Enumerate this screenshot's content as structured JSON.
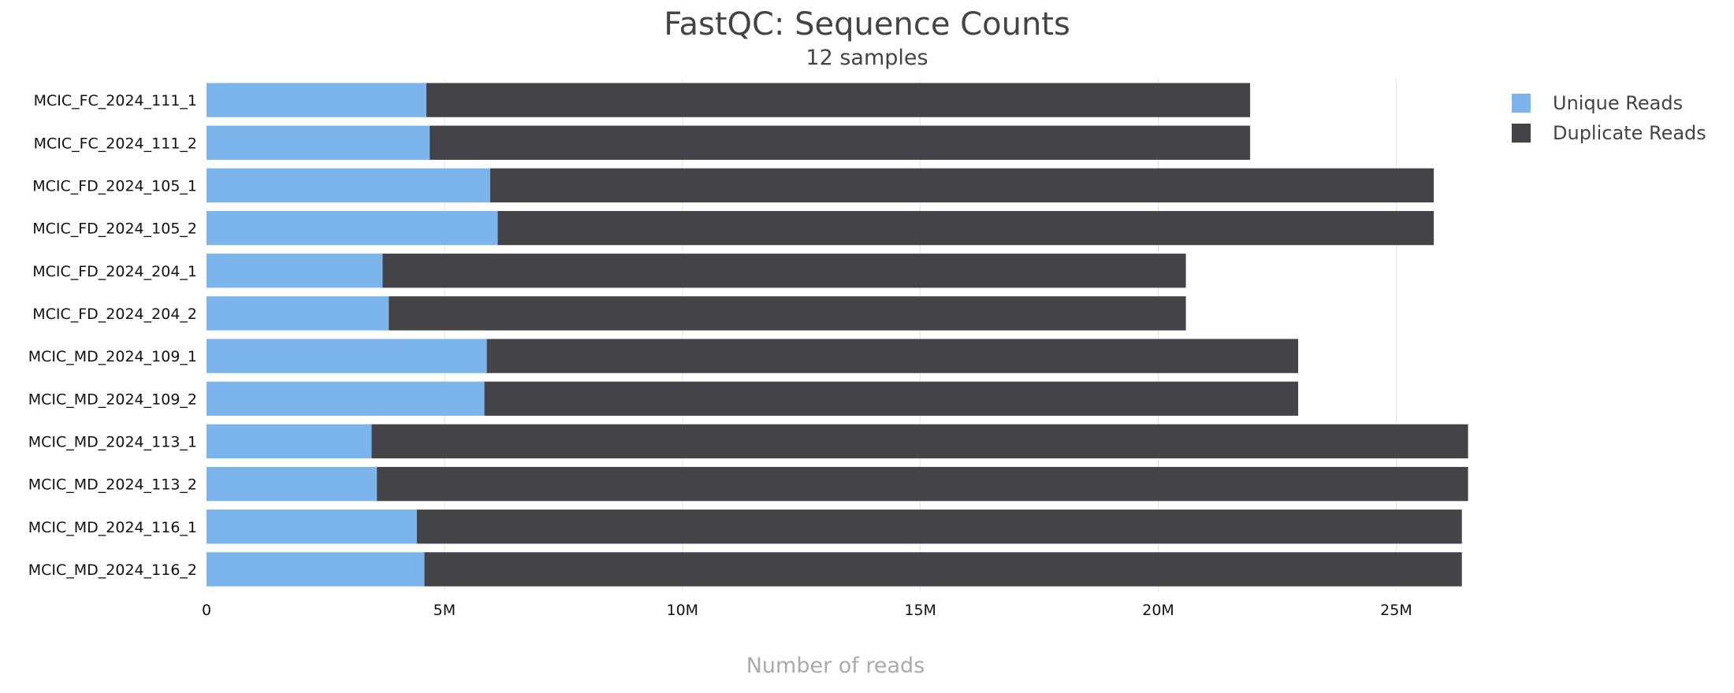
{
  "chart_data": {
    "type": "bar",
    "orientation": "horizontal",
    "stacked": true,
    "title": "FastQC: Sequence Counts",
    "subtitle": "12 samples",
    "xlabel": "Number of reads",
    "ylabel": "",
    "xlim": [
      0,
      26500000
    ],
    "x_ticks": [
      {
        "value": 0,
        "label": "0"
      },
      {
        "value": 5000000,
        "label": "5M"
      },
      {
        "value": 10000000,
        "label": "10M"
      },
      {
        "value": 15000000,
        "label": "15M"
      },
      {
        "value": 20000000,
        "label": "20M"
      },
      {
        "value": 25000000,
        "label": "25M"
      }
    ],
    "grid": "vertical",
    "legend_position": "top-right",
    "categories": [
      "MCIC_FC_2024_111_1",
      "MCIC_FC_2024_111_2",
      "MCIC_FD_2024_105_1",
      "MCIC_FD_2024_105_2",
      "MCIC_FD_2024_204_1",
      "MCIC_FD_2024_204_2",
      "MCIC_MD_2024_109_1",
      "MCIC_MD_2024_109_2",
      "MCIC_MD_2024_113_1",
      "MCIC_MD_2024_113_2",
      "MCIC_MD_2024_116_1",
      "MCIC_MD_2024_116_2"
    ],
    "series": [
      {
        "name": "Unique Reads",
        "color": "#7cb5ec",
        "values": [
          4620000,
          4690000,
          5960000,
          6120000,
          3700000,
          3830000,
          5890000,
          5840000,
          3470000,
          3580000,
          4420000,
          4580000
        ]
      },
      {
        "name": "Duplicate Reads",
        "color": "#434348",
        "values": [
          17310000,
          17240000,
          19830000,
          19670000,
          16880000,
          16750000,
          17050000,
          17100000,
          23040000,
          22930000,
          21960000,
          21800000
        ]
      }
    ]
  }
}
